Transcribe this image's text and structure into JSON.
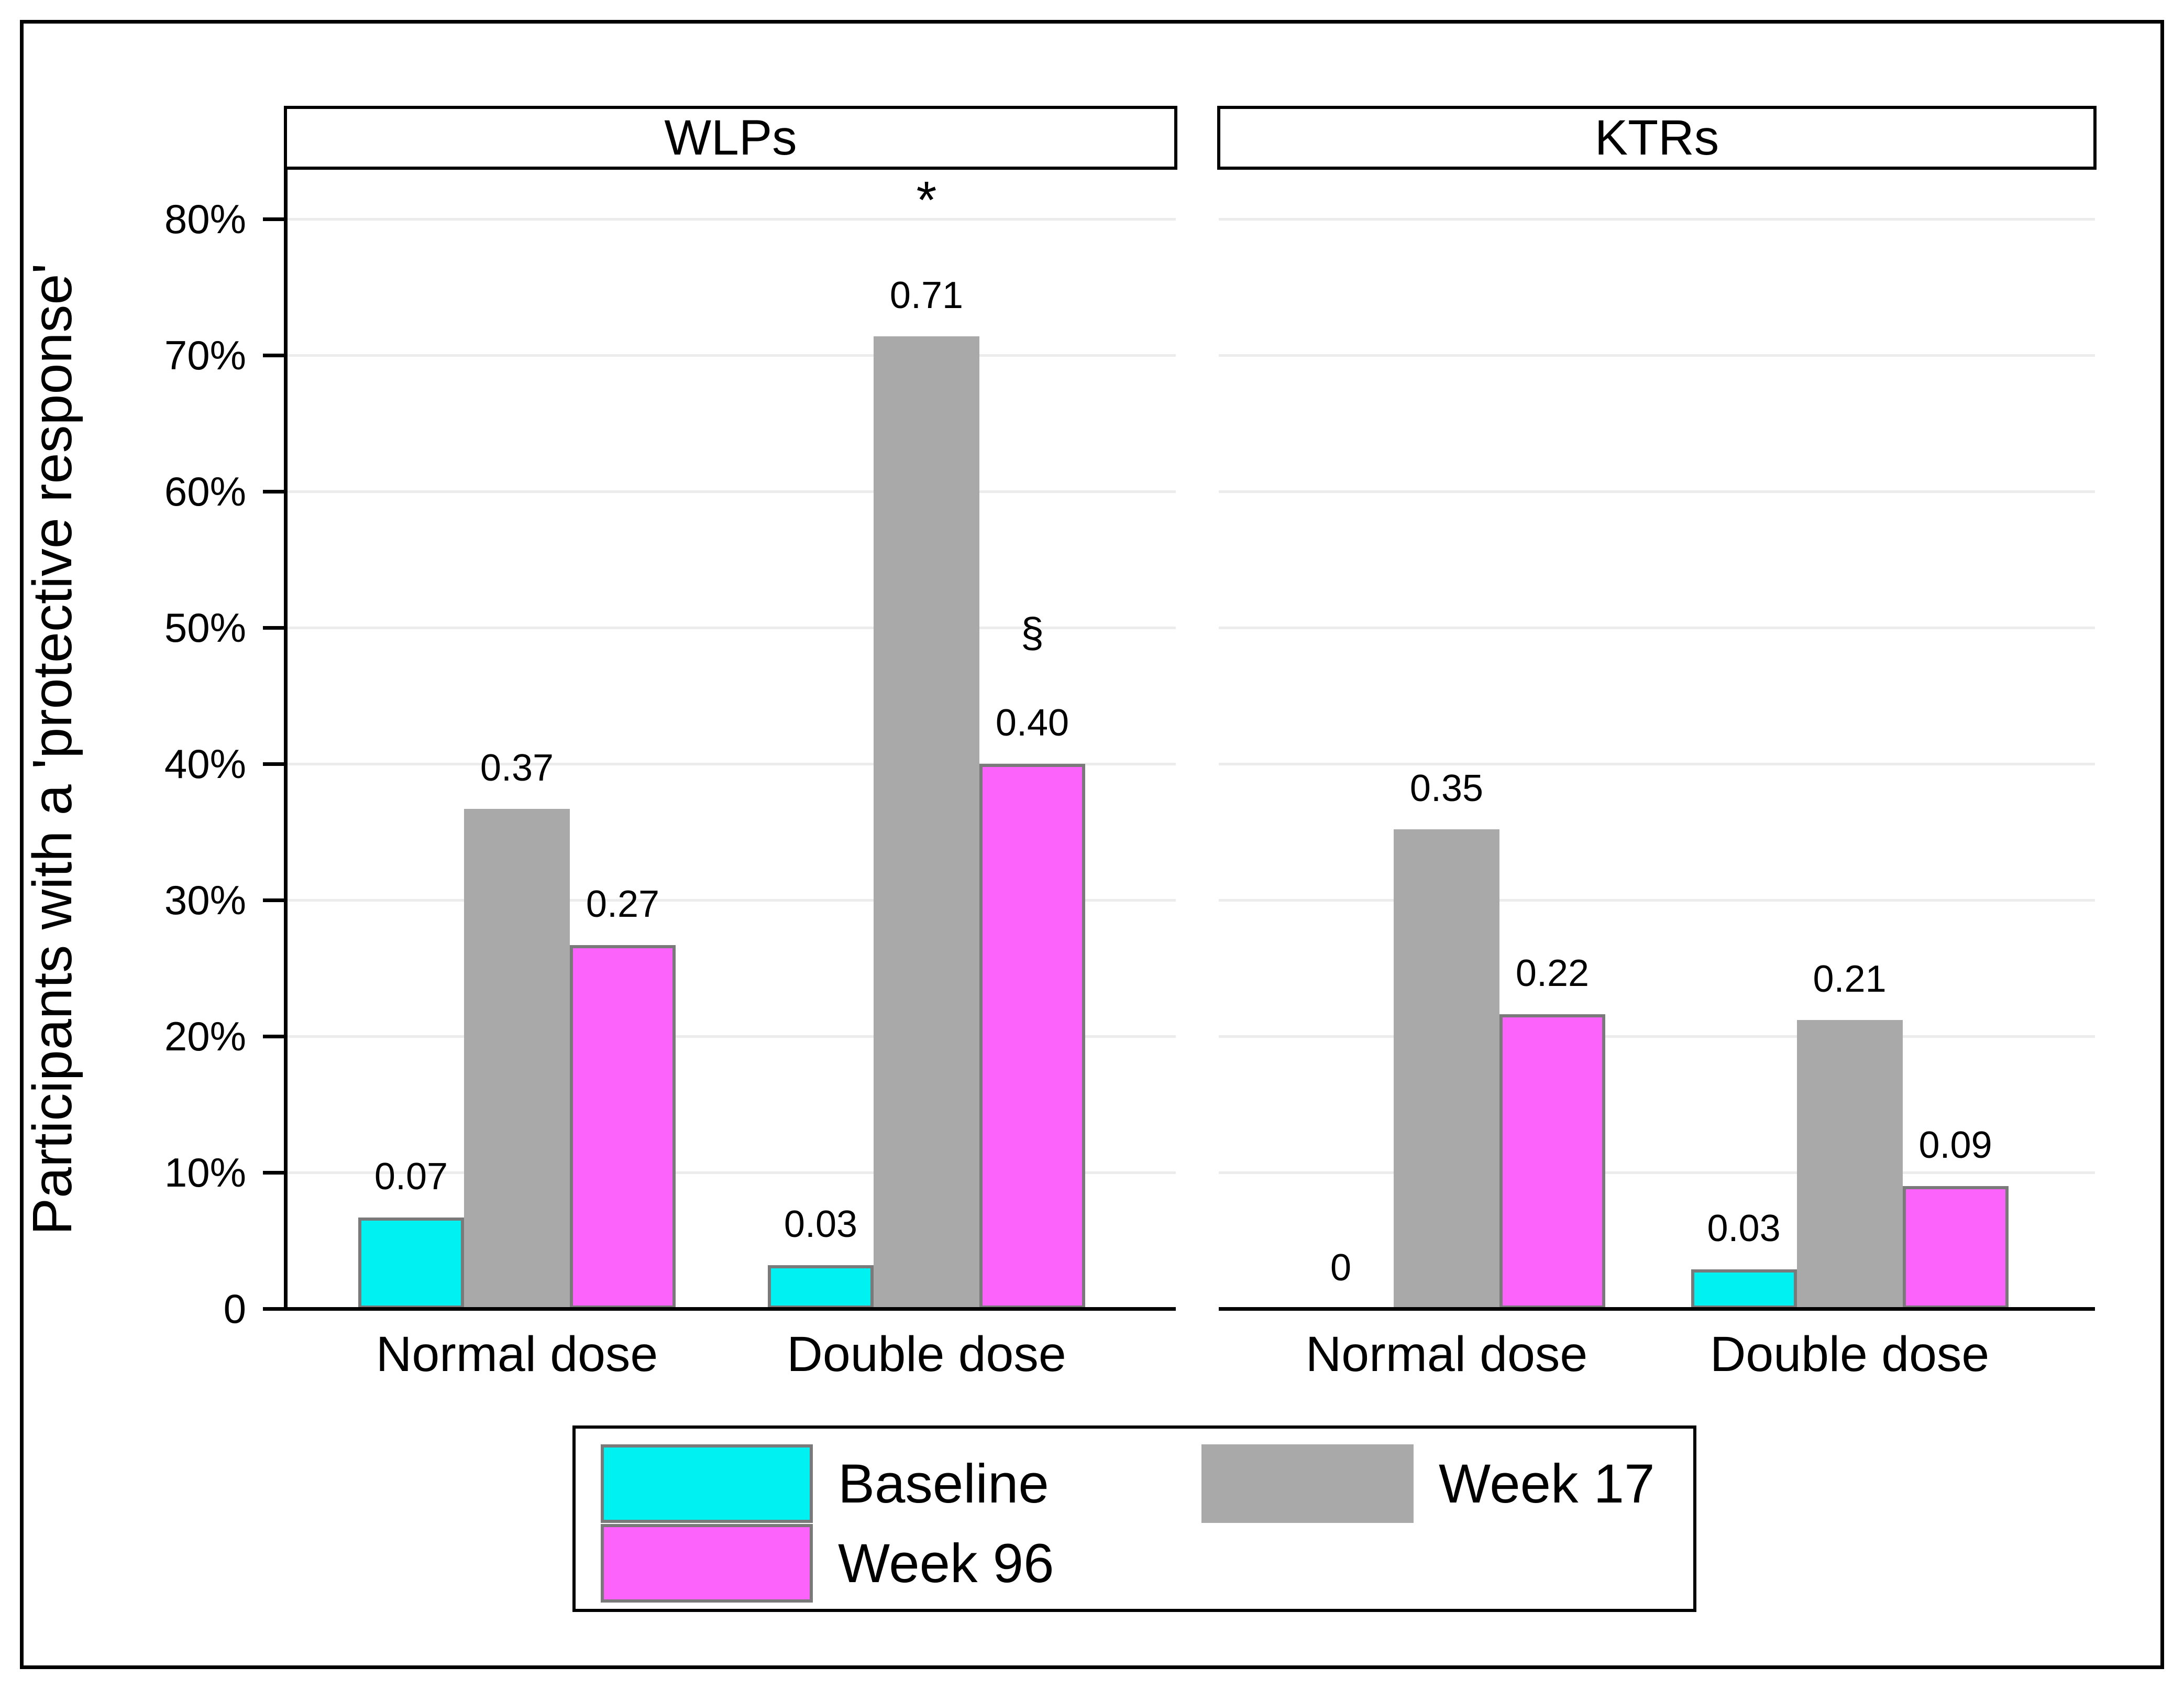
{
  "chart_data": {
    "type": "bar",
    "title": "",
    "xlabel": "",
    "ylabel": "Participants with a 'protective response'",
    "ylim": [
      0,
      83.6
    ],
    "grid": true,
    "legend_position": "bottom-center",
    "y_ticks": [
      {
        "value": 0,
        "label": "0"
      },
      {
        "value": 10,
        "label": "10%"
      },
      {
        "value": 20,
        "label": "20%"
      },
      {
        "value": 30,
        "label": "30%"
      },
      {
        "value": 40,
        "label": "40%"
      },
      {
        "value": 50,
        "label": "50%"
      },
      {
        "value": 60,
        "label": "60%"
      },
      {
        "value": 70,
        "label": "70%"
      },
      {
        "value": 80,
        "label": "80%"
      }
    ],
    "series_names": [
      "Baseline",
      "Week 17",
      "Week 96"
    ],
    "panels": [
      {
        "title": "WLPs",
        "groups": [
          {
            "label": "Normal dose",
            "bars": [
              {
                "series": "Baseline",
                "label": "0.07",
                "height_pct": 6.7
              },
              {
                "series": "Week 17",
                "label": "0.37",
                "height_pct": 36.7
              },
              {
                "series": "Week 96",
                "label": "0.27",
                "height_pct": 26.7
              }
            ]
          },
          {
            "label": "Double dose",
            "bars": [
              {
                "series": "Baseline",
                "label": "0.03",
                "height_pct": 3.2
              },
              {
                "series": "Week 17",
                "label": "0.71",
                "height_pct": 71.4,
                "marker": "*"
              },
              {
                "series": "Week 96",
                "label": "0.40",
                "height_pct": 40.0,
                "marker": "§"
              }
            ]
          }
        ]
      },
      {
        "title": "KTRs",
        "groups": [
          {
            "label": "Normal dose",
            "bars": [
              {
                "series": "Baseline",
                "label": "0",
                "height_pct": 0
              },
              {
                "series": "Week 17",
                "label": "0.35",
                "height_pct": 35.2
              },
              {
                "series": "Week 96",
                "label": "0.22",
                "height_pct": 21.6
              }
            ]
          },
          {
            "label": "Double dose",
            "bars": [
              {
                "series": "Baseline",
                "label": "0.03",
                "height_pct": 2.9
              },
              {
                "series": "Week 17",
                "label": "0.21",
                "height_pct": 21.2
              },
              {
                "series": "Week 96",
                "label": "0.09",
                "height_pct": 9.0
              }
            ]
          }
        ]
      }
    ],
    "annotations": [
      {
        "panel": "WLPs",
        "group": "Double dose",
        "series": "Week 17",
        "symbol": "*"
      },
      {
        "panel": "WLPs",
        "group": "Double dose",
        "series": "Week 96",
        "symbol": "§"
      }
    ],
    "legend": [
      {
        "label": "Baseline",
        "series": "Baseline"
      },
      {
        "label": "Week 17",
        "series": "Week 17"
      },
      {
        "label": "Week 96",
        "series": "Week 96"
      }
    ],
    "colors": {
      "Baseline": "#00F1F1",
      "Week 17": "#A9A9A9",
      "Week 96": "#FB63FB",
      "bar_border": "#7A7A7A",
      "gridline": "#ECECEC",
      "axis": "#000000",
      "text": "#000000"
    }
  }
}
